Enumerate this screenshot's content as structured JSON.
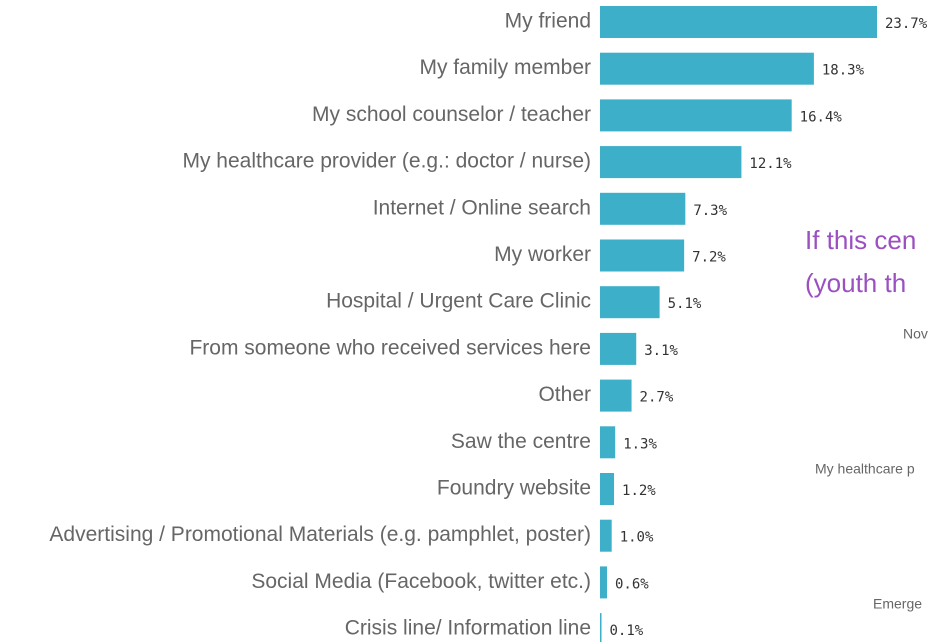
{
  "chart_data": {
    "type": "bar",
    "orientation": "horizontal",
    "color": "#3dafc9",
    "categories": [
      "My friend",
      "My family member",
      "My school counselor / teacher",
      "My healthcare provider (e.g.:  doctor / nurse)",
      "Internet / Online search",
      "My worker",
      "Hospital / Urgent Care Clinic",
      "From someone who received services here",
      "Other",
      "Saw the centre",
      "Foundry website",
      "Advertising / Promotional Materials (e.g. pamphlet, poster)",
      "Social Media (Facebook, twitter etc.)",
      "Crisis line/ Information line"
    ],
    "values": [
      23.7,
      18.3,
      16.4,
      12.1,
      7.3,
      7.2,
      5.1,
      3.1,
      2.7,
      1.3,
      1.2,
      1.0,
      0.6,
      0.1
    ],
    "value_labels": [
      "23.7%",
      "18.3%",
      "16.4%",
      "12.1%",
      "7.3%",
      "7.2%",
      "5.1%",
      "3.1%",
      "2.7%",
      "1.3%",
      "1.2%",
      "1.0%",
      "0.6%",
      "0.1%"
    ]
  },
  "next_chart": {
    "title_lines": [
      "If this cen",
      "(youth th"
    ],
    "labels": [
      "Nov",
      "My healthcare p",
      "Emerge"
    ]
  }
}
